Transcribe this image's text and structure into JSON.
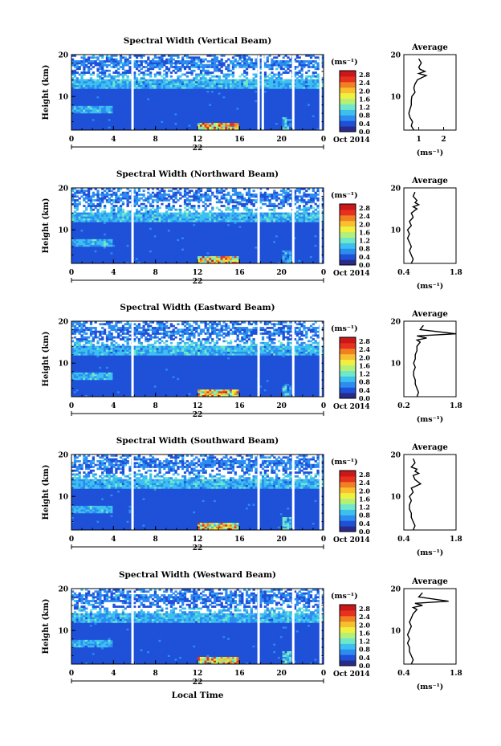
{
  "figure": {
    "date_label": "Oct 2014",
    "date_day": "22",
    "xlabel": "Local Time",
    "ylabel": "Height (km)",
    "unit_label": "(ms⁻¹)",
    "avg_title": "Average",
    "avg_xlabel": "(ms⁻¹)",
    "x_ticks": [
      "0",
      "4",
      "8",
      "12",
      "16",
      "20",
      "0"
    ],
    "y_ticks": [
      "20",
      "10"
    ],
    "colorbar_ticks": [
      "2.8",
      "2.4",
      "2.0",
      "1.6",
      "1.2",
      "0.8",
      "0.4",
      "0.0"
    ],
    "colormap": [
      "#2a2a8a",
      "#1e50d8",
      "#2c8cf0",
      "#3cc0f0",
      "#70e8c8",
      "#b4f078",
      "#f0f040",
      "#f8c030",
      "#f08020",
      "#e83020",
      "#c81818"
    ]
  },
  "chart_data": [
    {
      "type": "heatmap",
      "title": "Spectral Width (Vertical Beam)",
      "xlabel": "Local Time",
      "ylabel": "Height (km)",
      "xlim": [
        0,
        24
      ],
      "ylim": [
        2,
        20
      ],
      "colorbar": {
        "label": "(ms⁻¹)",
        "range": [
          0,
          3.0
        ]
      },
      "data_gaps_hours": [
        5.7,
        17.7,
        18.1,
        21.0,
        23.6
      ],
      "average_profile": {
        "title": "Average",
        "xlabel": "(ms⁻¹)",
        "xlim": [
          0.4,
          2.5
        ],
        "x_ticks": [
          "1",
          "2"
        ],
        "y_ticks": [
          "20",
          "10"
        ],
        "x": [
          0.8,
          0.7,
          0.75,
          0.65,
          0.6,
          0.65,
          0.7,
          0.7,
          0.72,
          0.85,
          0.8,
          0.85,
          0.95,
          1.3,
          1.0,
          1.25,
          1.05,
          1.0,
          1.1,
          1.0
        ],
        "y": [
          2,
          3,
          4,
          5,
          6,
          7,
          8,
          9,
          10,
          11,
          12,
          13,
          14,
          15,
          15.5,
          16,
          16.5,
          17,
          18,
          19
        ]
      }
    },
    {
      "type": "heatmap",
      "title": "Spectral Width (Northward Beam)",
      "xlabel": "Local Time",
      "ylabel": "Height (km)",
      "xlim": [
        0,
        24
      ],
      "ylim": [
        2,
        20
      ],
      "colorbar": {
        "label": "(ms⁻¹)",
        "range": [
          0,
          3.0
        ]
      },
      "data_gaps_hours": [
        5.7,
        17.7,
        21.0,
        23.6
      ],
      "average_profile": {
        "title": "Average",
        "xlabel": "(ms⁻¹)",
        "xlim": [
          0.4,
          1.8
        ],
        "x_ticks": [
          "0.4",
          "1.8"
        ],
        "y_ticks": [
          "20",
          "10"
        ],
        "x": [
          0.6,
          0.65,
          0.6,
          0.55,
          0.6,
          0.55,
          0.5,
          0.55,
          0.5,
          0.6,
          0.55,
          0.65,
          0.6,
          0.75,
          0.65,
          0.8,
          0.7,
          0.75,
          0.65,
          0.7
        ],
        "y": [
          2,
          3,
          4,
          5,
          6,
          7,
          8,
          9,
          10,
          11,
          12,
          13,
          14,
          15,
          15.5,
          16,
          16.5,
          17,
          18,
          19
        ]
      }
    },
    {
      "type": "heatmap",
      "title": "Spectral Width (Eastward Beam)",
      "xlabel": "Local Time",
      "ylabel": "Height (km)",
      "xlim": [
        0,
        24
      ],
      "ylim": [
        2,
        20
      ],
      "colorbar": {
        "label": "(ms⁻¹)",
        "range": [
          0,
          3.0
        ]
      },
      "data_gaps_hours": [
        5.7,
        17.7,
        21.0,
        23.6
      ],
      "average_profile": {
        "title": "Average",
        "xlabel": "(ms⁻¹)",
        "xlim": [
          0.2,
          1.8
        ],
        "x_ticks": [
          "0.2",
          "1.8"
        ],
        "y_ticks": [
          "20",
          "10"
        ],
        "x": [
          0.6,
          0.65,
          0.6,
          0.55,
          0.55,
          0.5,
          0.5,
          0.55,
          0.5,
          0.55,
          0.55,
          0.6,
          0.6,
          0.7,
          0.6,
          0.9,
          0.6,
          1.8,
          0.7,
          0.8
        ],
        "y": [
          2,
          3,
          4,
          5,
          6,
          7,
          8,
          9,
          10,
          11,
          12,
          13,
          14,
          15,
          15.5,
          16,
          16.5,
          17,
          18,
          19
        ]
      }
    },
    {
      "type": "heatmap",
      "title": "Spectral Width (Southward Beam)",
      "xlabel": "Local Time",
      "ylabel": "Height (km)",
      "xlim": [
        0,
        24
      ],
      "ylim": [
        2,
        20
      ],
      "colorbar": {
        "label": "(ms⁻¹)",
        "range": [
          0,
          3.0
        ]
      },
      "data_gaps_hours": [
        5.7,
        17.7,
        21.0,
        23.6
      ],
      "average_profile": {
        "title": "Average",
        "xlabel": "(ms⁻¹)",
        "xlim": [
          0.4,
          1.8
        ],
        "x_ticks": [
          "0.4",
          "1.8"
        ],
        "y_ticks": [
          "20",
          "10"
        ],
        "x": [
          0.65,
          0.7,
          0.65,
          0.6,
          0.6,
          0.55,
          0.55,
          0.6,
          0.55,
          0.65,
          0.6,
          0.85,
          0.7,
          0.65,
          0.8,
          0.7,
          0.75,
          0.6,
          0.7,
          0.65
        ],
        "y": [
          2,
          3,
          4,
          5,
          6,
          7,
          8,
          9,
          10,
          11,
          12,
          13,
          14,
          15,
          15.5,
          16,
          16.5,
          17,
          18,
          19
        ]
      }
    },
    {
      "type": "heatmap",
      "title": "Spectral Width (Westward Beam)",
      "xlabel": "Local Time",
      "ylabel": "Height (km)",
      "xlim": [
        0,
        24
      ],
      "ylim": [
        2,
        20
      ],
      "colorbar": {
        "label": "(ms⁻¹)",
        "range": [
          0,
          3.0
        ]
      },
      "data_gaps_hours": [
        5.7,
        17.7,
        21.0,
        23.6
      ],
      "average_profile": {
        "title": "Average",
        "xlabel": "(ms⁻¹)",
        "xlim": [
          0.4,
          1.8
        ],
        "x_ticks": [
          "0.4",
          "1.8"
        ],
        "y_ticks": [
          "20",
          "10"
        ],
        "x": [
          0.6,
          0.65,
          0.6,
          0.55,
          0.55,
          0.5,
          0.55,
          0.5,
          0.55,
          0.6,
          0.55,
          0.6,
          0.65,
          0.75,
          0.65,
          0.9,
          0.7,
          1.6,
          0.8,
          0.9
        ],
        "y": [
          2,
          3,
          4,
          5,
          6,
          7,
          8,
          9,
          10,
          11,
          12,
          13,
          14,
          15,
          15.5,
          16,
          16.5,
          17,
          18,
          19
        ]
      }
    }
  ]
}
